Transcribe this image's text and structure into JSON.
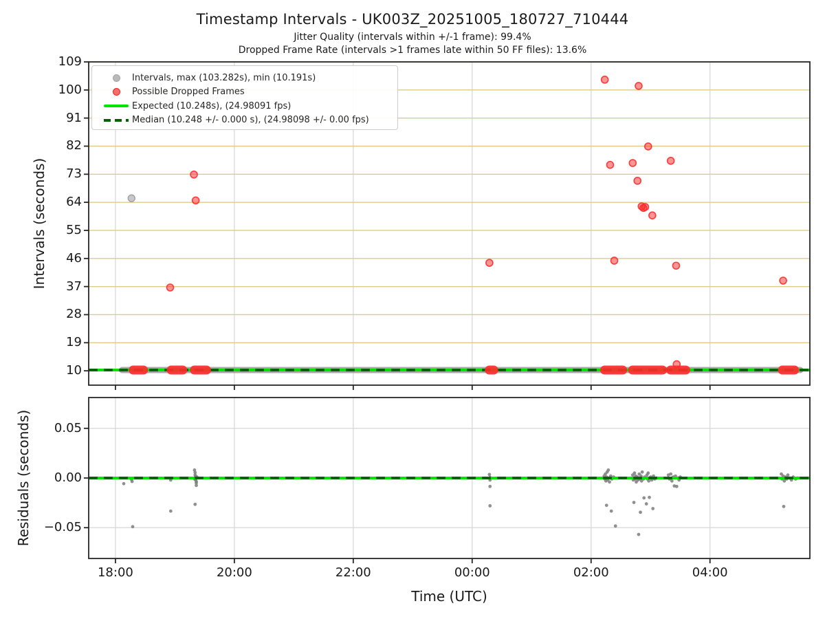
{
  "figure": {
    "title": "Timestamp Intervals - UK003Z_20251005_180727_710444",
    "subtitle_jitter": "Jitter Quality (intervals within +/-1 frame): 99.4%",
    "subtitle_dropped": "Dropped Frame Rate (intervals >1 frames late within 50 FF files): 13.6%"
  },
  "colors": {
    "expected": "#00e400",
    "median": "#006400",
    "dropped": "#ff2a2a",
    "intervals_gray": "#9a9a9a",
    "grid_khaki": "#decb8a",
    "grid_gray": "#d9d9d9",
    "spine": "#262626"
  },
  "chart_data": [
    {
      "type": "scatter",
      "panel": "intervals",
      "ylabel": "Intervals (seconds)",
      "ylim": [
        5.4,
        109
      ],
      "yticks": [
        10,
        19,
        28,
        37,
        46,
        55,
        64,
        73,
        82,
        91,
        100,
        109
      ],
      "xlim": [
        17.55,
        29.68
      ],
      "xticks": [
        18,
        20,
        22,
        24,
        26,
        28
      ],
      "xtick_labels": [
        "18:00",
        "20:00",
        "22:00",
        "00:00",
        "02:00",
        "04:00"
      ],
      "grid": true,
      "legend_position": "upper left",
      "legend": [
        {
          "label": "Intervals, max (103.282s), min (10.191s)",
          "marker": "dot",
          "color": "#9a9a9a"
        },
        {
          "label": "Possible Dropped Frames",
          "marker": "dot",
          "color": "#ff2a2a"
        },
        {
          "label": "Expected (10.248s), (24.98091 fps)",
          "marker": "line",
          "color": "#00e400"
        },
        {
          "label": "Median (10.248 +/- 0.000 s), (24.98098 +/- 0.00 fps)",
          "marker": "dashed-line",
          "color": "#006400"
        }
      ],
      "expected_value": 10.248,
      "median_value": 10.248,
      "intervals_band": {
        "y": 10.25,
        "x_start": 18.11,
        "x_end": 29.52
      },
      "gray_points": [
        [
          18.27,
          65.3
        ]
      ],
      "dropped_points": [
        [
          18.92,
          36.7
        ],
        [
          19.32,
          72.9
        ],
        [
          19.35,
          64.6
        ],
        [
          24.29,
          44.6
        ],
        [
          26.23,
          103.3
        ],
        [
          26.32,
          76.0
        ],
        [
          26.39,
          45.3
        ],
        [
          26.7,
          76.6
        ],
        [
          26.78,
          70.9
        ],
        [
          26.8,
          101.3
        ],
        [
          26.85,
          62.7
        ],
        [
          26.88,
          62.2
        ],
        [
          26.91,
          62.5
        ],
        [
          26.96,
          81.9
        ],
        [
          27.03,
          59.8
        ],
        [
          27.34,
          77.3
        ],
        [
          27.43,
          43.7
        ],
        [
          27.44,
          12.1
        ],
        [
          29.23,
          38.9
        ]
      ],
      "dropped_line_clusters": {
        "y": 10.25,
        "ranges": [
          [
            18.28,
            18.49
          ],
          [
            18.92,
            19.15
          ],
          [
            19.31,
            19.55
          ],
          [
            24.27,
            24.38
          ],
          [
            26.21,
            26.55
          ],
          [
            26.68,
            27.22
          ],
          [
            27.32,
            27.61
          ],
          [
            29.2,
            29.44
          ]
        ]
      }
    },
    {
      "type": "scatter",
      "panel": "residuals",
      "ylabel": "Residuals (seconds)",
      "xlabel": "Time (UTC)",
      "ylim": [
        -0.081,
        0.081
      ],
      "yticks": [
        0.05,
        0.0,
        -0.05
      ],
      "ytick_labels": [
        "0.05",
        "0.00",
        "−0.05"
      ],
      "xlim": [
        17.55,
        29.68
      ],
      "xticks": [
        18,
        20,
        22,
        24,
        26,
        28
      ],
      "xtick_labels": [
        "18:00",
        "20:00",
        "22:00",
        "00:00",
        "02:00",
        "04:00"
      ],
      "grid": true,
      "expected_value": 0.0,
      "median_value": 0.0,
      "points": [
        [
          18.14,
          -0.0057
        ],
        [
          18.27,
          -0.0015
        ],
        [
          18.28,
          -0.0035
        ],
        [
          18.29,
          -0.049
        ],
        [
          18.93,
          -0.0333
        ],
        [
          18.93,
          -0.002
        ],
        [
          19.33,
          0.008
        ],
        [
          19.33,
          -0.001
        ],
        [
          19.34,
          0.0055
        ],
        [
          19.34,
          0.003
        ],
        [
          19.34,
          -0.0265
        ],
        [
          19.35,
          0.0015
        ],
        [
          19.35,
          0.0
        ],
        [
          19.35,
          -0.002
        ],
        [
          19.36,
          -0.0035
        ],
        [
          19.36,
          -0.005
        ],
        [
          19.36,
          -0.0075
        ],
        [
          19.37,
          0.001
        ],
        [
          24.29,
          0.0035
        ],
        [
          24.3,
          0.0005
        ],
        [
          24.3,
          -0.002
        ],
        [
          24.3,
          -0.0085
        ],
        [
          24.3,
          -0.028
        ],
        [
          26.22,
          0.002
        ],
        [
          26.23,
          -0.001
        ],
        [
          26.24,
          0.004
        ],
        [
          26.25,
          -0.003
        ],
        [
          26.26,
          0.001
        ],
        [
          26.26,
          -0.0275
        ],
        [
          26.27,
          0.006
        ],
        [
          26.28,
          -0.002
        ],
        [
          26.29,
          0.008
        ],
        [
          26.3,
          0.0
        ],
        [
          26.31,
          -0.004
        ],
        [
          26.33,
          0.002
        ],
        [
          26.34,
          -0.0333
        ],
        [
          26.35,
          -0.001
        ],
        [
          26.38,
          0.001
        ],
        [
          26.41,
          -0.0483
        ],
        [
          26.7,
          0.003
        ],
        [
          26.71,
          -0.002
        ],
        [
          26.72,
          -0.0246
        ],
        [
          26.73,
          0.005
        ],
        [
          26.74,
          -0.001
        ],
        [
          26.75,
          0.002
        ],
        [
          26.76,
          -0.004
        ],
        [
          26.78,
          0.001
        ],
        [
          26.79,
          -0.002
        ],
        [
          26.8,
          -0.0568
        ],
        [
          26.81,
          0.004
        ],
        [
          26.82,
          -0.001
        ],
        [
          26.83,
          -0.0345
        ],
        [
          26.84,
          0.002
        ],
        [
          26.85,
          -0.003
        ],
        [
          26.86,
          0.006
        ],
        [
          26.88,
          -0.001
        ],
        [
          26.89,
          -0.02
        ],
        [
          26.9,
          0.001
        ],
        [
          26.93,
          -0.026
        ],
        [
          26.94,
          0.003
        ],
        [
          26.95,
          -0.001
        ],
        [
          26.96,
          0.005
        ],
        [
          26.97,
          -0.003
        ],
        [
          26.98,
          -0.0195
        ],
        [
          27.0,
          0.001
        ],
        [
          27.02,
          -0.002
        ],
        [
          27.04,
          -0.0308
        ],
        [
          27.05,
          0.002
        ],
        [
          27.07,
          -0.001
        ],
        [
          27.1,
          0.0
        ],
        [
          27.3,
          0.003
        ],
        [
          27.32,
          -0.001
        ],
        [
          27.34,
          0.004
        ],
        [
          27.36,
          -0.003
        ],
        [
          27.38,
          0.001
        ],
        [
          27.4,
          -0.008
        ],
        [
          27.42,
          0.002
        ],
        [
          27.44,
          -0.0085
        ],
        [
          27.46,
          0.0
        ],
        [
          27.48,
          -0.002
        ],
        [
          27.5,
          0.001
        ],
        [
          29.2,
          0.004
        ],
        [
          29.21,
          -0.001
        ],
        [
          29.23,
          0.002
        ],
        [
          29.24,
          -0.0287
        ],
        [
          29.25,
          -0.003
        ],
        [
          29.27,
          0.001
        ],
        [
          29.29,
          -0.001
        ],
        [
          29.31,
          0.003
        ],
        [
          29.34,
          0.0
        ],
        [
          29.37,
          -0.002
        ],
        [
          29.4,
          0.001
        ],
        [
          29.44,
          -0.001
        ],
        [
          29.47,
          0.0
        ]
      ]
    }
  ]
}
